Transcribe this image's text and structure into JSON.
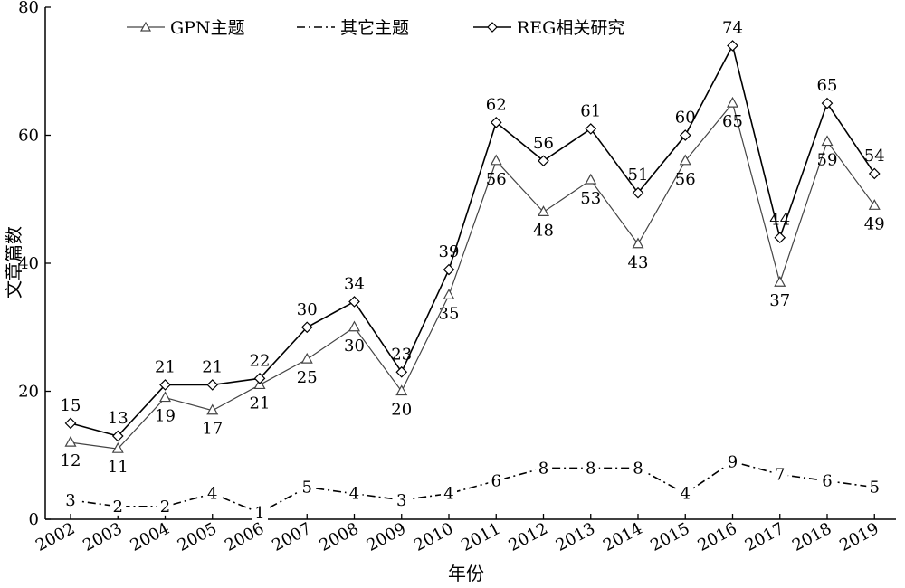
{
  "chart_data": {
    "type": "line",
    "title": "",
    "xlabel": "年份",
    "ylabel": "文章篇数",
    "categories": [
      "2002",
      "2003",
      "2004",
      "2005",
      "2006",
      "2007",
      "2008",
      "2009",
      "2010",
      "2011",
      "2012",
      "2013",
      "2014",
      "2015",
      "2016",
      "2017",
      "2018",
      "2019"
    ],
    "ylim": [
      0,
      80
    ],
    "yticks": [
      "0",
      "20",
      "40",
      "60",
      "80"
    ],
    "grid": false,
    "legend_position": "top",
    "series": [
      {
        "name": "GPN主题",
        "marker": "triangle",
        "style": "solid",
        "color": "#444444",
        "values": [
          12,
          11,
          19,
          17,
          21,
          25,
          30,
          20,
          35,
          56,
          48,
          53,
          43,
          56,
          65,
          37,
          59,
          49
        ]
      },
      {
        "name": "其它主题",
        "marker": "none",
        "style": "dash-dot",
        "color": "#000000",
        "values": [
          3,
          2,
          2,
          4,
          1,
          5,
          4,
          3,
          4,
          6,
          8,
          8,
          8,
          4,
          9,
          7,
          6,
          5
        ]
      },
      {
        "name": "REG相关研究",
        "marker": "diamond",
        "style": "solid",
        "color": "#000000",
        "values": [
          15,
          13,
          21,
          21,
          22,
          30,
          34,
          23,
          39,
          62,
          56,
          61,
          51,
          60,
          74,
          44,
          65,
          54
        ]
      }
    ]
  }
}
